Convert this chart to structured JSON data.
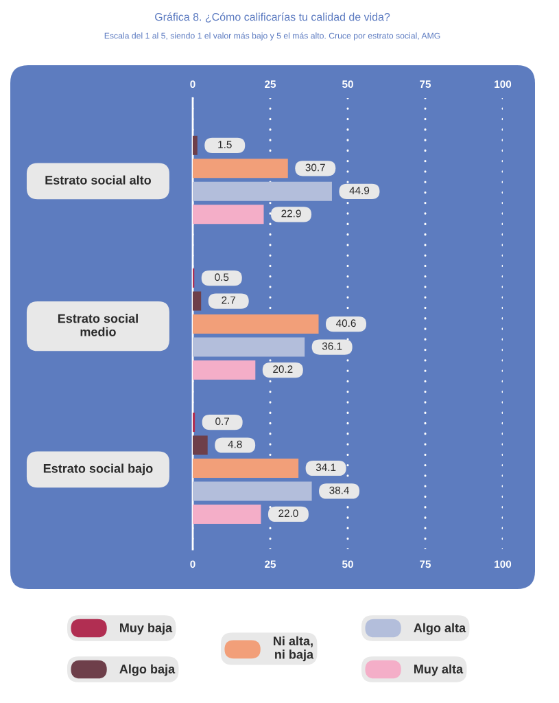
{
  "chart_data": {
    "type": "bar",
    "orientation": "horizontal",
    "title": "Gráfica 8. ¿Cómo calificarías tu calidad de vida?",
    "subtitle": "Escala del 1 al 5, siendo 1 el valor más bajo y 5 el más alto. Cruce por estrato social, AMG",
    "categories": [
      "Estrato social alto",
      "Estrato social medio",
      "Estrato social bajo"
    ],
    "series": [
      {
        "name": "Muy baja",
        "color": "#b12e52",
        "values": [
          null,
          0.5,
          0.7
        ],
        "value_labels": [
          null,
          "0.5",
          "0.7"
        ]
      },
      {
        "name": "Algo baja",
        "color": "#6e3f4a",
        "values": [
          1.5,
          2.7,
          4.8
        ],
        "value_labels": [
          "1.5",
          "2.7",
          "4.8"
        ]
      },
      {
        "name": "Ni alta, ni baja",
        "color": "#f29f79",
        "values": [
          30.7,
          40.6,
          34.1
        ],
        "value_labels": [
          "30.7",
          "40.6",
          "34.1"
        ]
      },
      {
        "name": "Algo alta",
        "color": "#b3bedb",
        "values": [
          44.9,
          36.1,
          38.4
        ],
        "value_labels": [
          "44.9",
          "36.1",
          "38.4"
        ]
      },
      {
        "name": "Muy alta",
        "color": "#f4aec8",
        "values": [
          22.9,
          20.2,
          22.0
        ],
        "value_labels": [
          "22.9",
          "20.2",
          "22.0"
        ]
      }
    ],
    "xlim": [
      0,
      100
    ],
    "xticks": [
      0,
      25,
      50,
      75,
      100
    ],
    "x2lim": [
      0,
      100
    ],
    "x2ticks": [
      0,
      25,
      50,
      75,
      100
    ],
    "grid": "x",
    "legend": "bottom"
  }
}
